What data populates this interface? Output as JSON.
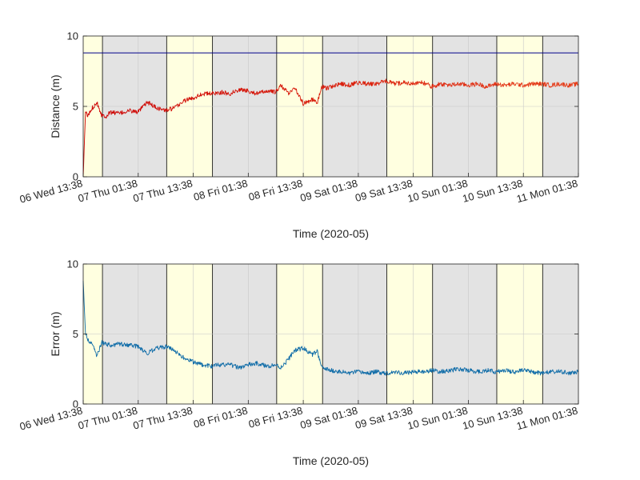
{
  "chart_data": [
    {
      "type": "line",
      "xlabel": "Time (2020-05)",
      "ylabel": "Distance (m)",
      "ylim": [
        0,
        10
      ],
      "yticks": [
        0,
        5,
        10
      ],
      "x_start_label": "06 Wed 13:38",
      "xticks": [
        "06 Wed 13:38",
        "07 Thu 01:38",
        "07 Thu 13:38",
        "08 Fri 01:38",
        "08 Fri 13:38",
        "09 Sat 01:38",
        "09 Sat 13:38",
        "10 Sun 01:38",
        "10 Sun 13:38",
        "11 Mon 01:38"
      ],
      "xlim_hours": [
        0,
        108
      ],
      "grid": true,
      "legend": "none",
      "background_bands": [
        {
          "from_hours": 0,
          "to_hours": 4.2,
          "shade": "day"
        },
        {
          "from_hours": 4.2,
          "to_hours": 18.2,
          "shade": "night"
        },
        {
          "from_hours": 18.2,
          "to_hours": 28.2,
          "shade": "day"
        },
        {
          "from_hours": 28.2,
          "to_hours": 42.2,
          "shade": "night"
        },
        {
          "from_hours": 42.2,
          "to_hours": 52.2,
          "shade": "day"
        },
        {
          "from_hours": 52.2,
          "to_hours": 66.2,
          "shade": "night"
        },
        {
          "from_hours": 66.2,
          "to_hours": 76.2,
          "shade": "day"
        },
        {
          "from_hours": 76.2,
          "to_hours": 90.2,
          "shade": "night"
        },
        {
          "from_hours": 90.2,
          "to_hours": 100.2,
          "shade": "day"
        },
        {
          "from_hours": 100.2,
          "to_hours": 108,
          "shade": "night"
        }
      ],
      "reference_line": {
        "y": 8.8,
        "color": "#00008b"
      },
      "series": [
        {
          "color_start": "#cc0000",
          "color_end": "#e8401a",
          "x_hours": [
            0,
            0.5,
            1,
            2,
            3,
            4,
            5,
            6,
            8,
            10,
            12,
            14,
            16,
            18,
            20,
            22,
            24,
            26,
            28,
            30,
            32,
            34,
            36,
            38,
            40,
            42,
            43,
            44,
            45,
            46,
            48,
            50,
            51,
            52,
            53,
            54,
            56,
            58,
            60,
            62,
            64,
            66,
            68,
            70,
            72,
            74,
            76,
            78,
            80,
            82,
            84,
            86,
            88,
            90,
            92,
            94,
            96,
            98,
            100,
            102,
            104,
            106,
            108
          ],
          "values": [
            0,
            4.6,
            4.3,
            4.9,
            5.3,
            4.4,
            4.3,
            4.6,
            4.5,
            4.7,
            4.6,
            5.3,
            4.9,
            4.7,
            4.9,
            5.4,
            5.6,
            5.9,
            5.9,
            6.0,
            5.9,
            6.2,
            6.1,
            5.9,
            6.1,
            6.0,
            6.5,
            6.2,
            5.9,
            6.4,
            5.2,
            5.5,
            5.2,
            6.4,
            6.3,
            6.4,
            6.6,
            6.5,
            6.7,
            6.6,
            6.6,
            6.8,
            6.6,
            6.7,
            6.6,
            6.7,
            6.4,
            6.6,
            6.5,
            6.6,
            6.5,
            6.6,
            6.4,
            6.6,
            6.5,
            6.6,
            6.5,
            6.6,
            6.6,
            6.5,
            6.6,
            6.5,
            6.6
          ]
        }
      ]
    },
    {
      "type": "line",
      "xlabel": "Time (2020-05)",
      "ylabel": "Error (m)",
      "ylim": [
        0,
        10
      ],
      "yticks": [
        0,
        5,
        10
      ],
      "x_start_label": "06 Wed 13:38",
      "xticks": [
        "06 Wed 13:38",
        "07 Thu 01:38",
        "07 Thu 13:38",
        "08 Fri 01:38",
        "08 Fri 13:38",
        "09 Sat 01:38",
        "09 Sat 13:38",
        "10 Sun 01:38",
        "10 Sun 13:38",
        "11 Mon 01:38"
      ],
      "xlim_hours": [
        0,
        108
      ],
      "grid": true,
      "legend": "none",
      "background_bands": [
        {
          "from_hours": 0,
          "to_hours": 4.2,
          "shade": "day"
        },
        {
          "from_hours": 4.2,
          "to_hours": 18.2,
          "shade": "night"
        },
        {
          "from_hours": 18.2,
          "to_hours": 28.2,
          "shade": "day"
        },
        {
          "from_hours": 28.2,
          "to_hours": 42.2,
          "shade": "night"
        },
        {
          "from_hours": 42.2,
          "to_hours": 52.2,
          "shade": "day"
        },
        {
          "from_hours": 52.2,
          "to_hours": 66.2,
          "shade": "night"
        },
        {
          "from_hours": 66.2,
          "to_hours": 76.2,
          "shade": "day"
        },
        {
          "from_hours": 76.2,
          "to_hours": 90.2,
          "shade": "night"
        },
        {
          "from_hours": 90.2,
          "to_hours": 100.2,
          "shade": "day"
        },
        {
          "from_hours": 100.2,
          "to_hours": 108,
          "shade": "night"
        }
      ],
      "series": [
        {
          "color": "#0f6ca8",
          "x_hours": [
            0,
            0.5,
            1,
            2,
            3,
            4,
            5,
            6,
            8,
            10,
            12,
            14,
            16,
            18,
            20,
            22,
            24,
            26,
            28,
            30,
            32,
            34,
            36,
            38,
            40,
            42,
            43,
            44,
            45,
            46,
            48,
            50,
            51,
            52,
            53,
            54,
            56,
            58,
            60,
            62,
            64,
            66,
            68,
            70,
            72,
            74,
            76,
            78,
            80,
            82,
            84,
            86,
            88,
            90,
            92,
            94,
            96,
            98,
            100,
            102,
            104,
            106,
            108
          ],
          "values": [
            8.8,
            5.0,
            4.6,
            4.3,
            3.4,
            4.4,
            4.3,
            4.2,
            4.3,
            4.2,
            4.1,
            3.6,
            4.0,
            4.1,
            3.8,
            3.3,
            3.0,
            2.8,
            2.7,
            2.8,
            2.8,
            2.6,
            2.8,
            2.9,
            2.7,
            2.8,
            2.6,
            2.9,
            3.3,
            3.8,
            4.0,
            3.5,
            3.8,
            2.6,
            2.5,
            2.4,
            2.3,
            2.2,
            2.3,
            2.2,
            2.3,
            2.2,
            2.3,
            2.2,
            2.3,
            2.3,
            2.4,
            2.3,
            2.4,
            2.5,
            2.4,
            2.3,
            2.4,
            2.3,
            2.4,
            2.3,
            2.4,
            2.3,
            2.2,
            2.3,
            2.3,
            2.2,
            2.3
          ]
        }
      ]
    }
  ],
  "colors": {
    "day_band": "#ffffe0",
    "night_band": "#e3e3e3",
    "axis": "#262626",
    "grid": "#c8c8c8"
  }
}
